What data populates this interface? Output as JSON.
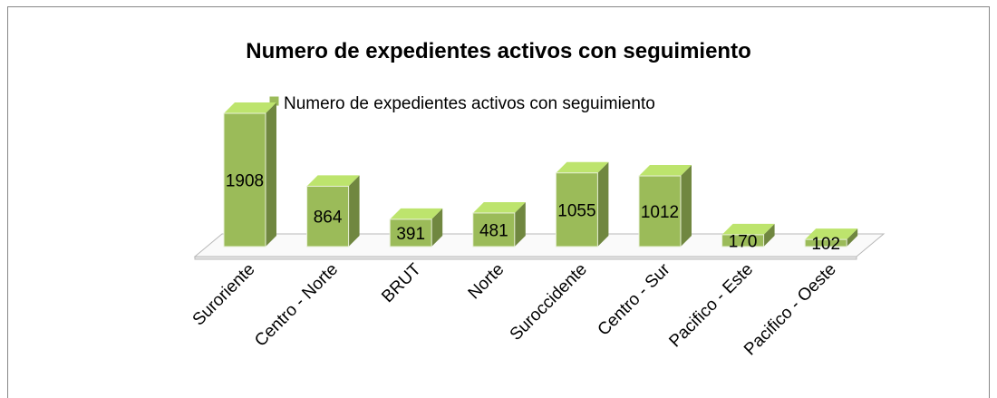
{
  "chart_data": {
    "type": "bar",
    "title": "Numero de expedientes activos con seguimiento",
    "categories": [
      "Suroriente",
      "Centro - Norte",
      "BRUT",
      "Norte",
      "Suroccidente",
      "Centro - Sur",
      "Pacifico - Este",
      "Pacifico - Oeste"
    ],
    "series": [
      {
        "name": "Numero de expedientes activos con seguimiento",
        "color": "#9bbb59",
        "values": [
          1908,
          864,
          391,
          481,
          1055,
          1012,
          170,
          102
        ]
      }
    ]
  }
}
